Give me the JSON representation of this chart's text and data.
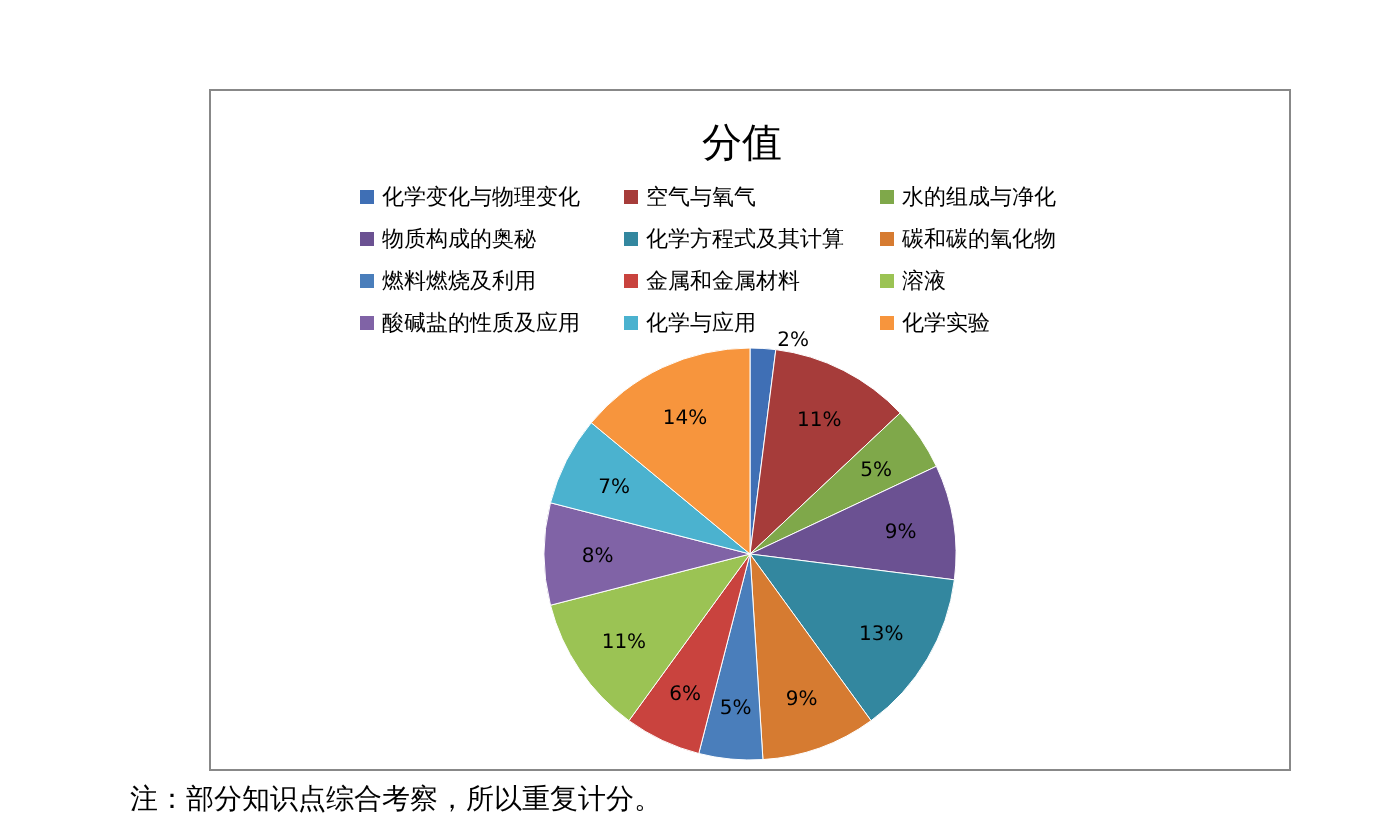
{
  "chart_data": {
    "type": "pie",
    "title": "分值",
    "categories": [
      "化学变化与物理变化",
      "空气与氧气",
      "水的组成与净化",
      "物质构成的奥秘",
      "化学方程式及其计算",
      "碳和碳的氧化物",
      "燃料燃烧及利用",
      "金属和金属材料",
      "溶液",
      "酸碱盐的性质及应用",
      "化学与应用",
      "化学实验"
    ],
    "values": [
      2,
      11,
      5,
      9,
      13,
      9,
      5,
      6,
      11,
      8,
      7,
      14
    ],
    "colors": [
      "#3f6fb5",
      "#a63c3a",
      "#7fa84a",
      "#6b5192",
      "#33879f",
      "#d67b31",
      "#4a7ebb",
      "#c9433e",
      "#9bc354",
      "#8063a6",
      "#4bb2cf",
      "#f7953d"
    ],
    "value_labels": [
      "2%",
      "11%",
      "5%",
      "9%",
      "13%",
      "9%",
      "5%",
      "6%",
      "11%",
      "8%",
      "7%",
      "14%"
    ],
    "legend": "top",
    "annotations": [
      "注：部分知识点综合考察，所以重复计分。"
    ]
  }
}
